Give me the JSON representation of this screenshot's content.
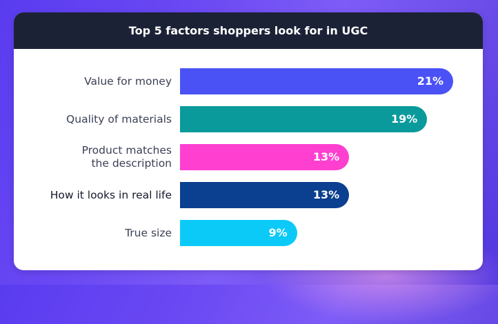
{
  "chart_data": {
    "type": "bar",
    "orientation": "horizontal",
    "title": "Top 5 factors shoppers look for in UGC",
    "categories": [
      "Value for money",
      "Quality of materials",
      "Product matches\nthe description",
      "How it looks in real life",
      "True size"
    ],
    "values": [
      21,
      19,
      13,
      13,
      9
    ],
    "value_labels": [
      "21%",
      "19%",
      "13%",
      "13%",
      "9%"
    ],
    "bar_colors": [
      "#4b52f5",
      "#0a9a9c",
      "#ff3fd0",
      "#0b3f8f",
      "#0ccaf7"
    ],
    "label_colors": [
      "#3a3f55",
      "#3a3f55",
      "#3a3f55",
      "#15182a",
      "#3a3f55"
    ],
    "xlabel": "",
    "ylabel": "",
    "grid": false
  }
}
